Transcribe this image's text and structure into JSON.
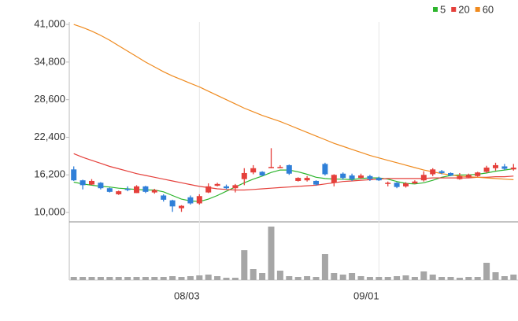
{
  "chart_data": {
    "type": "candlestick",
    "categories": [
      null,
      null,
      null,
      null,
      null,
      null,
      null,
      null,
      null,
      null,
      null,
      null,
      null,
      null,
      "08/03",
      null,
      null,
      null,
      null,
      null,
      null,
      null,
      null,
      null,
      null,
      null,
      null,
      null,
      null,
      null,
      null,
      null,
      null,
      null,
      "09/01",
      null,
      null,
      null,
      null,
      null,
      null,
      null,
      null,
      null,
      null,
      null,
      null,
      null,
      null,
      null
    ],
    "ohlc": {
      "open": [
        17100,
        15300,
        14600,
        14900,
        14000,
        13000,
        13900,
        13200,
        14300,
        13300,
        12800,
        12000,
        10700,
        12500,
        11500,
        13300,
        14400,
        14300,
        14000,
        15500,
        16600,
        16700,
        17400,
        17300,
        17800,
        15200,
        15300,
        15200,
        18000,
        14900,
        16400,
        16100,
        15700,
        16000,
        15700,
        14700,
        14900,
        14300,
        14800,
        15300,
        16300,
        16800,
        16500,
        15500,
        15800,
        16000,
        16700,
        17300,
        17600,
        17100
      ],
      "high": [
        17600,
        15400,
        15500,
        15000,
        14100,
        13600,
        14300,
        14500,
        14400,
        13900,
        13000,
        12100,
        11200,
        12800,
        13000,
        14800,
        14900,
        14600,
        14700,
        17300,
        17800,
        16800,
        20600,
        17800,
        17900,
        15800,
        16000,
        15300,
        18200,
        16300,
        16600,
        16400,
        16400,
        16200,
        15900,
        15100,
        15000,
        15000,
        15300,
        16800,
        17300,
        17000,
        16600,
        16500,
        16400,
        16700,
        17700,
        18200,
        18000,
        18000
      ],
      "low": [
        15200,
        13800,
        14500,
        13800,
        13300,
        12900,
        13500,
        13200,
        13200,
        13100,
        11800,
        10100,
        10100,
        11300,
        11300,
        13200,
        14300,
        13800,
        13300,
        14500,
        16300,
        16000,
        17300,
        17300,
        16200,
        15100,
        15100,
        14400,
        16100,
        14300,
        15400,
        15200,
        15500,
        15200,
        15200,
        14300,
        14000,
        14100,
        14700,
        15100,
        16000,
        16300,
        16000,
        15400,
        15700,
        15900,
        16500,
        16900,
        17000,
        16900
      ],
      "close": [
        15300,
        14500,
        15200,
        14000,
        13400,
        13500,
        13700,
        14300,
        13400,
        13700,
        12100,
        11000,
        11100,
        11500,
        12700,
        14300,
        14700,
        14000,
        14500,
        16500,
        17300,
        16100,
        17500,
        17500,
        16400,
        15700,
        15700,
        14600,
        16300,
        16200,
        15700,
        15500,
        16100,
        15500,
        15300,
        14900,
        14200,
        14800,
        15100,
        16200,
        17100,
        16500,
        16100,
        16000,
        16200,
        16600,
        17400,
        17800,
        17200,
        17400
      ]
    },
    "up_color": "#e5403b",
    "down_color": "#2f7fd8",
    "series": [
      {
        "name": "5",
        "color": "#2db52d",
        "values": [
          15000,
          14700,
          14500,
          14300,
          14200,
          14000,
          13900,
          13800,
          13700,
          13700,
          13400,
          12800,
          12200,
          11900,
          11800,
          12200,
          12800,
          13500,
          14200,
          14900,
          15500,
          16000,
          16600,
          17000,
          17000,
          16700,
          16300,
          15800,
          15600,
          15500,
          15500,
          15400,
          15600,
          15700,
          15700,
          15500,
          15100,
          14800,
          14700,
          14900,
          15300,
          15800,
          16100,
          16200,
          16200,
          16300,
          16500,
          16800,
          17000,
          17200
        ]
      },
      {
        "name": "20",
        "color": "#e5403b",
        "values": [
          19700,
          19100,
          18600,
          18100,
          17600,
          17200,
          16800,
          16400,
          16100,
          15800,
          15500,
          15200,
          14900,
          14600,
          14300,
          14100,
          13900,
          13800,
          13700,
          13700,
          13800,
          13900,
          14000,
          14100,
          14200,
          14300,
          14400,
          14500,
          14700,
          14900,
          15100,
          15200,
          15300,
          15400,
          15500,
          15600,
          15600,
          15600,
          15600,
          15600,
          15700,
          15700,
          15700,
          15700,
          15700,
          15800,
          15800,
          15900,
          15900,
          16000
        ]
      },
      {
        "name": "60",
        "color": "#ef8a1e",
        "values": [
          41000,
          40500,
          39900,
          39200,
          38400,
          37500,
          36600,
          35700,
          34800,
          34000,
          33200,
          32500,
          31900,
          31300,
          30700,
          30000,
          29300,
          28600,
          27900,
          27200,
          26600,
          26000,
          25500,
          25000,
          24400,
          23800,
          23200,
          22600,
          22000,
          21400,
          20900,
          20400,
          19900,
          19400,
          19000,
          18600,
          18200,
          17800,
          17400,
          17000,
          16700,
          16400,
          16200,
          16000,
          15900,
          15800,
          15700,
          15600,
          15500,
          15400
        ]
      }
    ],
    "volume": {
      "color": "#a6a6a6",
      "values": [
        4,
        4,
        4,
        4,
        4,
        4,
        4,
        4,
        4,
        4,
        4,
        5,
        4,
        5,
        6,
        7,
        5,
        3,
        3,
        38,
        14,
        9,
        68,
        12,
        5,
        4,
        5,
        4,
        33,
        9,
        7,
        9,
        5,
        4,
        4,
        4,
        5,
        6,
        4,
        11,
        7,
        4,
        4,
        3,
        4,
        4,
        22,
        10,
        5,
        7
      ]
    },
    "ylim": [
      8450,
      41400
    ],
    "yticks": [
      {
        "value": 41000,
        "label": "41,000"
      },
      {
        "value": 34800,
        "label": "34,800"
      },
      {
        "value": 28600,
        "label": "28,600"
      },
      {
        "value": 22400,
        "label": "22,400"
      },
      {
        "value": 16200,
        "label": "16,200"
      },
      {
        "value": 10000,
        "label": "10,000"
      }
    ],
    "legend": "top-right"
  }
}
